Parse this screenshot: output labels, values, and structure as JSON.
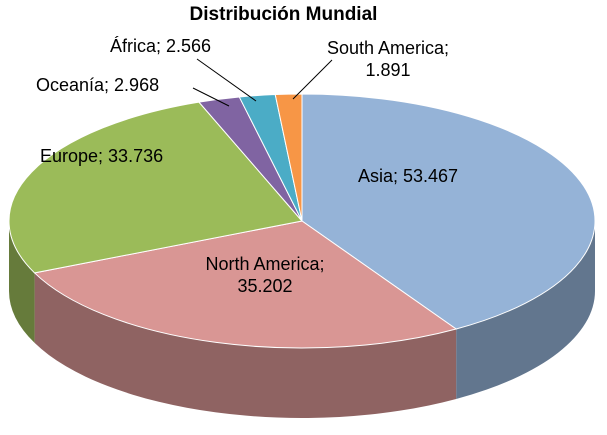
{
  "chart_data": {
    "type": "pie",
    "effect": "3d",
    "title": "Distribución Mundial",
    "legend_position": "none",
    "data_labels": "category; value",
    "series": [
      {
        "name": "Asia",
        "value": 53.467,
        "display": "Asia; 53.467",
        "color": "#95B3D7"
      },
      {
        "name": "North America",
        "value": 35.202,
        "display": "North America; 35.202",
        "color": "#D99694"
      },
      {
        "name": "Europe",
        "value": 33.736,
        "display": "Europe; 33.736",
        "color": "#9BBB59"
      },
      {
        "name": "Oceanía",
        "value": 2.968,
        "display": "Oceanía; 2.968",
        "color": "#8064A2"
      },
      {
        "name": "África",
        "value": 2.566,
        "display": "África; 2.566",
        "color": "#4BACC6"
      },
      {
        "name": "South America",
        "value": 1.891,
        "display": "South America; 1.891",
        "color": "#F79646"
      }
    ]
  }
}
